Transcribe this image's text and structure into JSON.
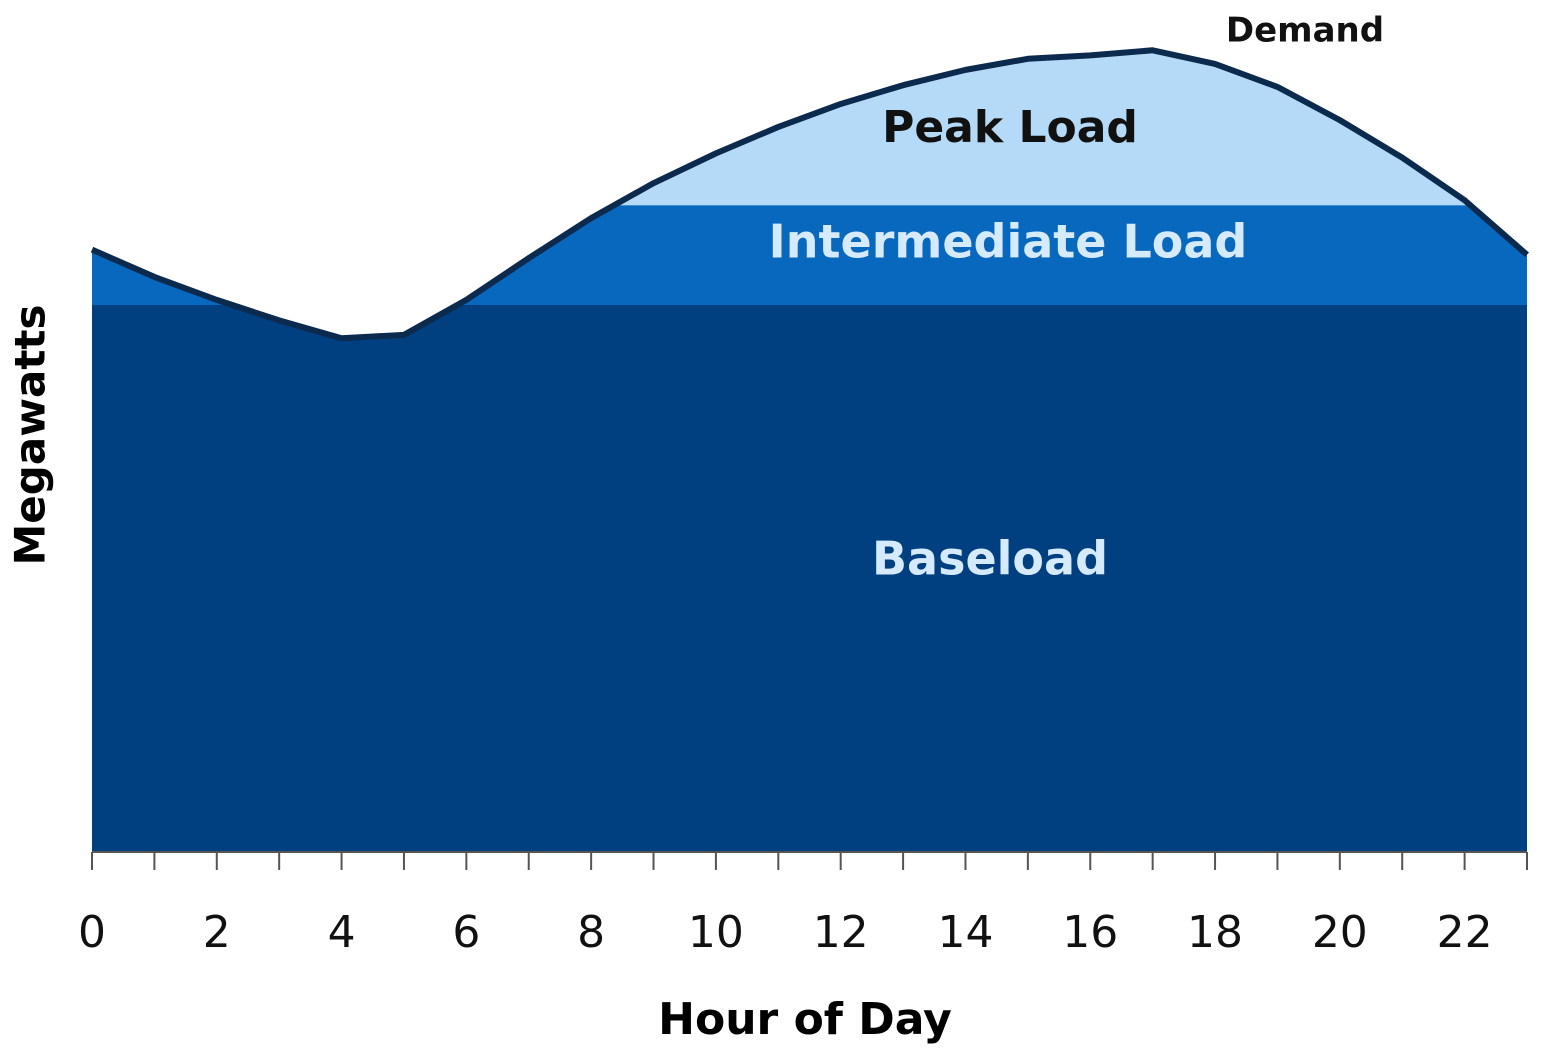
{
  "chart_data": {
    "type": "area",
    "x_label": "Hour of Day",
    "y_label": "Megawatts",
    "x": [
      0,
      1,
      2,
      3,
      4,
      5,
      6,
      7,
      8,
      9,
      10,
      11,
      12,
      13,
      14,
      15,
      16,
      17,
      18,
      19,
      20,
      21,
      22,
      23
    ],
    "series": [
      {
        "name": "Demand",
        "color": "#0b2a4e",
        "values": [
          70.7,
          67.5,
          64.8,
          62.4,
          60.3,
          60.7,
          64.8,
          69.7,
          74.4,
          78.5,
          82.0,
          85.1,
          87.8,
          90.0,
          91.8,
          93.1,
          93.5,
          94.1,
          92.5,
          89.8,
          85.9,
          81.5,
          76.5,
          70.1
        ]
      }
    ],
    "bands": [
      {
        "name": "Baseload",
        "upper": 64.2,
        "color": "#004080",
        "label_color": "#d5eafc"
      },
      {
        "name": "Intermediate Load",
        "upper": 75.9,
        "color": "#0868bd",
        "label_color": "#d5eafc"
      },
      {
        "name": "Peak Load",
        "color": "#b5daf7",
        "label_color": "#111111"
      }
    ],
    "xlim": [
      0,
      23
    ],
    "ylim": [
      0,
      100
    ],
    "xticks": [
      0,
      2,
      4,
      6,
      8,
      10,
      12,
      14,
      16,
      18,
      20,
      22
    ]
  }
}
